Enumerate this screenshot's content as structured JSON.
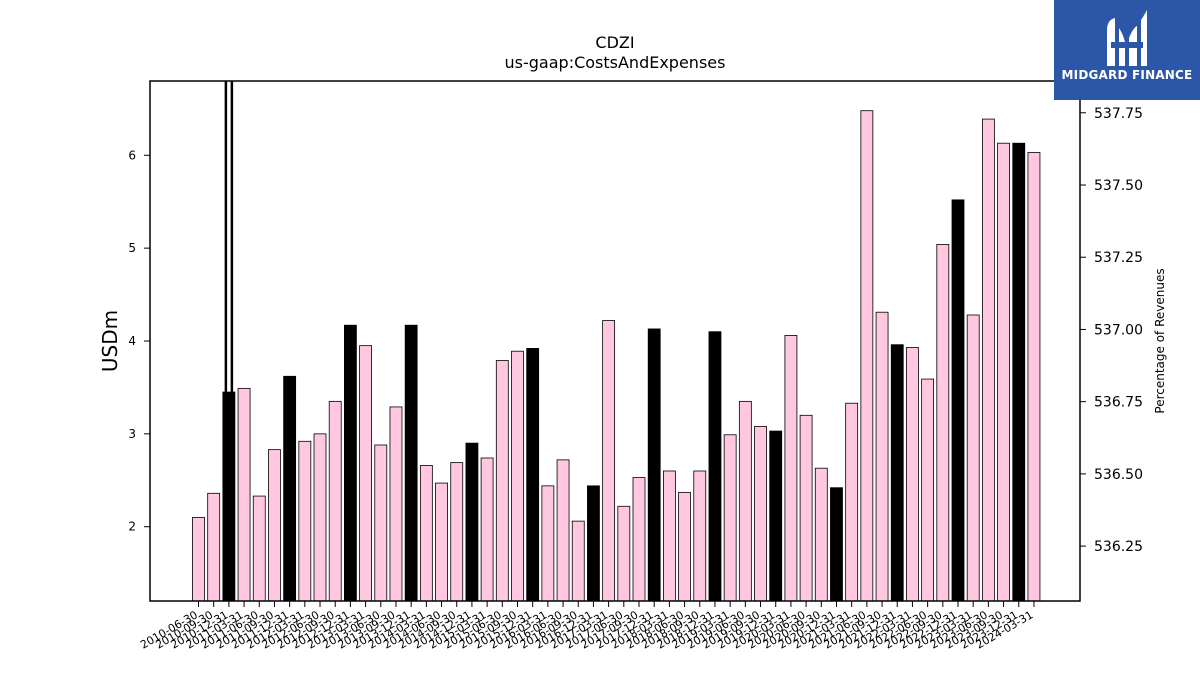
{
  "chart_data": {
    "type": "bar",
    "title": "CDZI",
    "subtitle": "us-gaap:CostsAndExpenses",
    "ylabel": "USDm",
    "y2label": "Percentage of Revenues",
    "ylim": [
      1.2,
      6.8
    ],
    "y2lim": [
      536.06,
      537.86
    ],
    "yticks": [
      2,
      3,
      4,
      5,
      6
    ],
    "y2ticks": [
      "536.25",
      "536.50",
      "536.75",
      "537.00",
      "537.25",
      "537.50",
      "537.75"
    ],
    "y2tick_values": [
      536.25,
      536.5,
      536.75,
      537.0,
      537.25,
      537.5,
      537.75
    ],
    "grid": false,
    "colors": {
      "quarter": "#ffc8e0",
      "annual": "#000000",
      "edge": "#000000"
    },
    "x_tick_labels": [
      "2010-06-30",
      "2010-09-30",
      "2010-12-31",
      "2011-03-31",
      "2011-06-30",
      "2011-09-30",
      "2011-12-31",
      "2012-03-31",
      "2012-06-30",
      "2012-09-30",
      "2012-12-31",
      "2013-03-31",
      "2013-06-30",
      "2013-09-30",
      "2013-12-31",
      "2014-03-31",
      "2014-06-30",
      "2014-09-30",
      "2014-12-31",
      "2015-03-31",
      "2015-06-30",
      "2015-09-30",
      "2015-12-31",
      "2016-03-31",
      "2016-06-30",
      "2016-09-30",
      "2016-12-31",
      "2017-03-31",
      "2017-06-30",
      "2017-09-30",
      "2017-12-31",
      "2018-03-31",
      "2018-06-30",
      "2018-09-30",
      "2018-12-31",
      "2019-03-31",
      "2019-06-30",
      "2019-09-30",
      "2019-12-31",
      "2020-03-31",
      "2020-06-30",
      "2020-09-30",
      "2020-12-31",
      "2021-03-31",
      "2021-06-30",
      "2021-09-30",
      "2021-12-31",
      "2022-03-31",
      "2022-06-30",
      "2022-09-30",
      "2022-12-31",
      "2023-03-31",
      "2023-06-30",
      "2023-09-30",
      "2023-12-31",
      "2024-03-31"
    ],
    "values": [
      2.1,
      2.36,
      3.45,
      3.49,
      2.33,
      2.83,
      3.62,
      2.92,
      3.0,
      3.35,
      4.17,
      3.95,
      2.88,
      3.29,
      4.17,
      2.66,
      2.47,
      2.69,
      2.9,
      2.74,
      3.79,
      3.89,
      3.92,
      2.44,
      2.72,
      2.06,
      2.44,
      4.22,
      2.22,
      2.53,
      4.13,
      2.6,
      2.37,
      2.6,
      4.1,
      2.99,
      3.35,
      3.08,
      3.03,
      4.06,
      3.2,
      2.63,
      2.42,
      3.33,
      6.48,
      4.31,
      3.96,
      3.93,
      3.59,
      5.04,
      5.52,
      4.28,
      6.39,
      6.13,
      6.13,
      6.03
    ],
    "annual": [
      false,
      false,
      true,
      false,
      false,
      false,
      true,
      false,
      false,
      false,
      true,
      false,
      false,
      false,
      true,
      false,
      false,
      false,
      true,
      false,
      false,
      false,
      true,
      false,
      false,
      false,
      true,
      false,
      false,
      false,
      true,
      false,
      false,
      false,
      true,
      false,
      false,
      false,
      true,
      false,
      false,
      false,
      true,
      false,
      false,
      false,
      true,
      false,
      false,
      false,
      true,
      false,
      false,
      false,
      true,
      false
    ],
    "percentage_line": {
      "x_index": 2,
      "value_range": [
        536.06,
        537.86
      ]
    }
  },
  "logo": {
    "text": "MIDGARD FINANCE",
    "icon": "midgard-m-logo-icon"
  }
}
